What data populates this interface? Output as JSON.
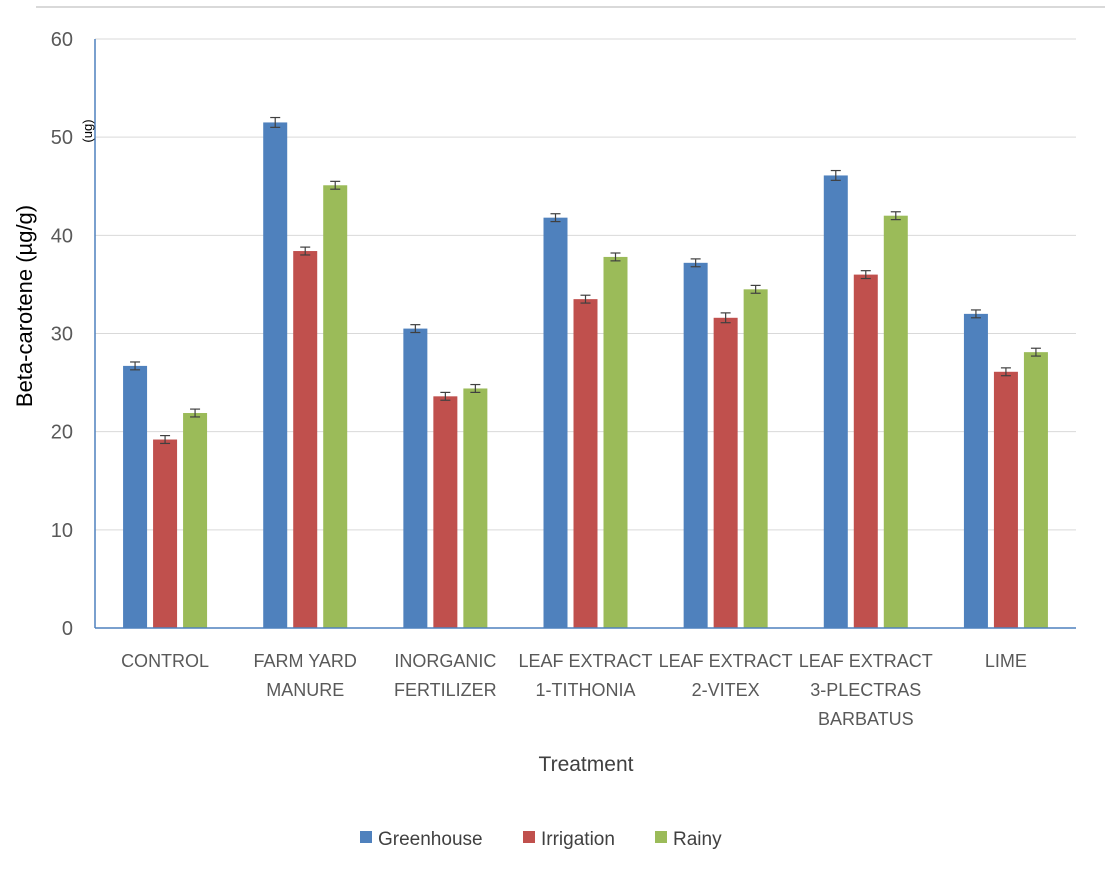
{
  "chart_data": {
    "type": "bar",
    "categories": [
      [
        "CONTROL"
      ],
      [
        "FARM YARD",
        "MANURE"
      ],
      [
        "INORGANIC",
        "FERTILIZER"
      ],
      [
        "LEAF EXTRACT",
        "1-TITHONIA"
      ],
      [
        "LEAF EXTRACT",
        "2-VITEX"
      ],
      [
        "LEAF EXTRACT",
        "3-PLECTRAS",
        "BARBATUS"
      ],
      [
        "LIME"
      ]
    ],
    "series": [
      {
        "name": "Greenhouse",
        "color": "#4f81bd",
        "values": [
          26.7,
          51.5,
          30.5,
          41.8,
          37.2,
          46.1,
          32.0
        ],
        "errors": [
          0.4,
          0.5,
          0.4,
          0.4,
          0.4,
          0.5,
          0.4
        ]
      },
      {
        "name": "Irrigation",
        "color": "#c0504d",
        "values": [
          19.2,
          38.4,
          23.6,
          33.5,
          31.6,
          36.0,
          26.1
        ],
        "errors": [
          0.4,
          0.4,
          0.4,
          0.4,
          0.5,
          0.4,
          0.4
        ]
      },
      {
        "name": "Rainy",
        "color": "#9bbb59",
        "values": [
          21.9,
          45.1,
          24.4,
          37.8,
          34.5,
          42.0,
          28.1
        ],
        "errors": [
          0.4,
          0.4,
          0.4,
          0.4,
          0.4,
          0.4,
          0.4
        ]
      }
    ],
    "xlabel": "Treatment",
    "ylabel": "Beta-carotene (µg/g)",
    "unit_note": "(ug)",
    "ylim": [
      0,
      60
    ],
    "yticks": [
      0,
      10,
      20,
      30,
      40,
      50,
      60
    ],
    "grid": true,
    "legend_position": "bottom"
  }
}
